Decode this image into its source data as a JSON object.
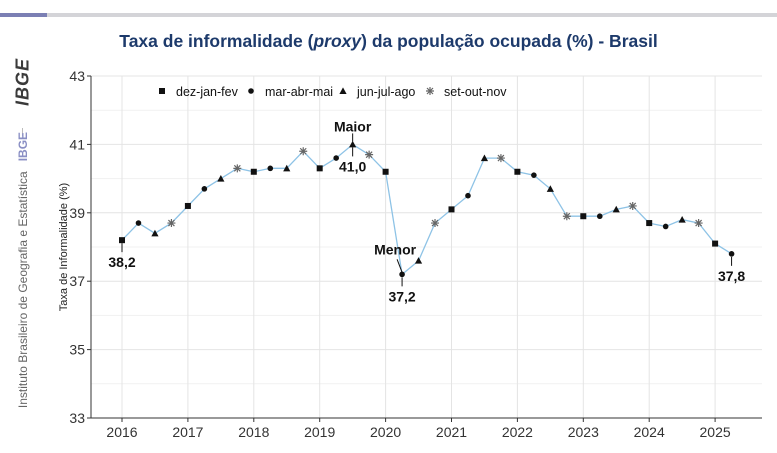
{
  "title_prefix": "Taxa de informalidade (",
  "title_italic": "proxy",
  "title_suffix": ") da população ocupada (%) - Brasil",
  "sidebar": {
    "logo": "IBGE",
    "institution": "Instituto Brasileiro de Geografia e Estatística",
    "abbreviation": "IBGE"
  },
  "chart_data": {
    "type": "line",
    "ylabel": "Taxa de Informalidade (%)",
    "xlabel": "",
    "ylim": [
      33,
      43
    ],
    "yticks": [
      33,
      35,
      37,
      39,
      41,
      43
    ],
    "xticks": [
      "2016",
      "2017",
      "2018",
      "2019",
      "2020",
      "2021",
      "2022",
      "2023",
      "2024",
      "2025"
    ],
    "grid": true,
    "line_color": "#8ec3e6",
    "legend_position": "top-left",
    "legend": [
      {
        "label": "dez-jan-fev",
        "marker": "square"
      },
      {
        "label": "mar-abr-mai",
        "marker": "circle"
      },
      {
        "label": "jun-jul-ago",
        "marker": "triangle"
      },
      {
        "label": "set-out-nov",
        "marker": "asterisk"
      }
    ],
    "points": [
      {
        "x": "2016-01",
        "y": 38.2,
        "marker": "square"
      },
      {
        "x": "2016-04",
        "y": 38.7,
        "marker": "circle"
      },
      {
        "x": "2016-07",
        "y": 38.4,
        "marker": "triangle"
      },
      {
        "x": "2016-10",
        "y": 38.7,
        "marker": "asterisk"
      },
      {
        "x": "2017-01",
        "y": 39.2,
        "marker": "square"
      },
      {
        "x": "2017-04",
        "y": 39.7,
        "marker": "circle"
      },
      {
        "x": "2017-07",
        "y": 40.0,
        "marker": "triangle"
      },
      {
        "x": "2017-10",
        "y": 40.3,
        "marker": "asterisk"
      },
      {
        "x": "2018-01",
        "y": 40.2,
        "marker": "square"
      },
      {
        "x": "2018-04",
        "y": 40.3,
        "marker": "circle"
      },
      {
        "x": "2018-07",
        "y": 40.3,
        "marker": "triangle"
      },
      {
        "x": "2018-10",
        "y": 40.8,
        "marker": "asterisk"
      },
      {
        "x": "2019-01",
        "y": 40.3,
        "marker": "square"
      },
      {
        "x": "2019-04",
        "y": 40.6,
        "marker": "circle"
      },
      {
        "x": "2019-07",
        "y": 41.0,
        "marker": "triangle"
      },
      {
        "x": "2019-10",
        "y": 40.7,
        "marker": "asterisk"
      },
      {
        "x": "2020-01",
        "y": 40.2,
        "marker": "square"
      },
      {
        "x": "2020-04",
        "y": 37.2,
        "marker": "circle"
      },
      {
        "x": "2020-07",
        "y": 37.6,
        "marker": "triangle"
      },
      {
        "x": "2020-10",
        "y": 38.7,
        "marker": "asterisk"
      },
      {
        "x": "2021-01",
        "y": 39.1,
        "marker": "square"
      },
      {
        "x": "2021-04",
        "y": 39.5,
        "marker": "circle"
      },
      {
        "x": "2021-07",
        "y": 40.6,
        "marker": "triangle"
      },
      {
        "x": "2021-10",
        "y": 40.6,
        "marker": "asterisk"
      },
      {
        "x": "2022-01",
        "y": 40.2,
        "marker": "square"
      },
      {
        "x": "2022-04",
        "y": 40.1,
        "marker": "circle"
      },
      {
        "x": "2022-07",
        "y": 39.7,
        "marker": "triangle"
      },
      {
        "x": "2022-10",
        "y": 38.9,
        "marker": "asterisk"
      },
      {
        "x": "2023-01",
        "y": 38.9,
        "marker": "square"
      },
      {
        "x": "2023-04",
        "y": 38.9,
        "marker": "circle"
      },
      {
        "x": "2023-07",
        "y": 39.1,
        "marker": "triangle"
      },
      {
        "x": "2023-10",
        "y": 39.2,
        "marker": "asterisk"
      },
      {
        "x": "2024-01",
        "y": 38.7,
        "marker": "square"
      },
      {
        "x": "2024-04",
        "y": 38.6,
        "marker": "circle"
      },
      {
        "x": "2024-07",
        "y": 38.8,
        "marker": "triangle"
      },
      {
        "x": "2024-10",
        "y": 38.7,
        "marker": "asterisk"
      },
      {
        "x": "2025-01",
        "y": 38.1,
        "marker": "square"
      },
      {
        "x": "2025-04",
        "y": 37.8,
        "marker": "circle"
      }
    ],
    "annotations": [
      {
        "x": "2016-01",
        "y": 38.2,
        "label": "38,2",
        "pos": "below"
      },
      {
        "x": "2019-07",
        "y": 41.0,
        "label": "Maior",
        "pos": "above"
      },
      {
        "x": "2019-07",
        "y": 41.0,
        "label": "41,0",
        "pos": "below"
      },
      {
        "x": "2020-04",
        "y": 37.2,
        "label": "Menor",
        "pos": "above-left"
      },
      {
        "x": "2020-04",
        "y": 37.2,
        "label": "37,2",
        "pos": "below"
      },
      {
        "x": "2025-04",
        "y": 37.8,
        "label": "37,8",
        "pos": "below"
      }
    ]
  }
}
